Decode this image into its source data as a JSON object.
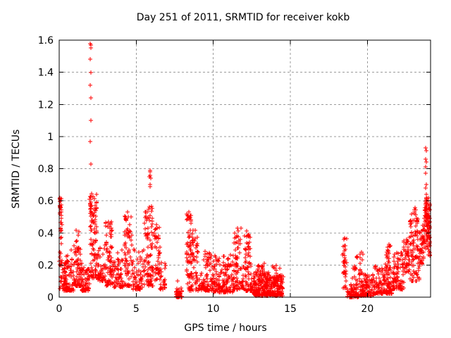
{
  "window": {
    "title": "Day 251 of 2011, SRMTID for receiver kokb"
  },
  "colors": {
    "background": "#ffffff",
    "border": "#000000",
    "grid": "#9b9b9b",
    "text": "#000000",
    "marker": "#ff0000"
  },
  "chart_data": {
    "type": "scatter",
    "title": "Day 251 of 2011, SRMTID for receiver kokb",
    "xlabel": "GPS time / hours",
    "ylabel": "SRMTID / TECUs",
    "xlim": [
      0,
      24.1
    ],
    "ylim": [
      0,
      1.6
    ],
    "xticks": [
      0,
      5,
      10,
      15,
      20
    ],
    "xtick_labels": [
      "0",
      "5",
      "10",
      "15",
      "20"
    ],
    "yticks": [
      0,
      0.2,
      0.4,
      0.6,
      0.8,
      1,
      1.2,
      1.4,
      1.6
    ],
    "ytick_labels": [
      "0",
      "0.2",
      "0.4",
      "0.6",
      "0.8",
      "1",
      "1.2",
      "1.4",
      "1.6"
    ],
    "grid": true,
    "legend": "none",
    "marker": "plus",
    "marker_size": 7,
    "marker_color": "#ff0000",
    "seed": 20110251,
    "spike_points": [
      [
        2.03,
        1.58
      ],
      [
        2.06,
        1.57
      ],
      [
        2.04,
        1.55
      ],
      [
        2.03,
        1.48
      ],
      [
        2.05,
        1.4
      ],
      [
        2.03,
        1.32
      ],
      [
        2.05,
        1.24
      ],
      [
        2.04,
        1.1
      ],
      [
        2.03,
        0.97
      ],
      [
        2.05,
        0.83
      ],
      [
        5.88,
        0.79
      ],
      [
        5.92,
        0.78
      ],
      [
        5.9,
        0.76
      ],
      [
        5.86,
        0.75
      ],
      [
        5.95,
        0.74
      ],
      [
        5.89,
        0.7
      ],
      [
        5.92,
        0.69
      ],
      [
        0.06,
        0.62
      ],
      [
        0.08,
        0.6
      ],
      [
        7.7,
        0.1
      ],
      [
        8.42,
        0.53
      ],
      [
        3.18,
        0.47
      ],
      [
        4.45,
        0.53
      ],
      [
        6.32,
        0.45
      ],
      [
        11.55,
        0.43
      ],
      [
        11.6,
        0.41
      ],
      [
        12.18,
        0.41
      ],
      [
        18.5,
        0.37
      ],
      [
        23.78,
        0.93
      ],
      [
        23.81,
        0.91
      ],
      [
        23.79,
        0.86
      ],
      [
        23.82,
        0.84
      ],
      [
        23.8,
        0.81
      ],
      [
        23.79,
        0.77
      ],
      [
        23.83,
        0.7
      ],
      [
        23.78,
        0.68
      ],
      [
        23.81,
        0.64
      ]
    ],
    "clusters": [
      [
        0.02,
        0.15,
        0.48,
        0.62,
        18,
        "mid"
      ],
      [
        0.02,
        0.18,
        0.18,
        0.48,
        16,
        "mid"
      ],
      [
        0.05,
        0.5,
        0.05,
        0.24,
        48,
        "low"
      ],
      [
        0.3,
        0.95,
        0.04,
        0.3,
        75,
        "low"
      ],
      [
        0.95,
        1.45,
        0.07,
        0.33,
        70,
        "low"
      ],
      [
        1.05,
        1.3,
        0.28,
        0.42,
        10,
        "mid"
      ],
      [
        1.45,
        1.95,
        0.04,
        0.2,
        55,
        "low"
      ],
      [
        1.98,
        2.12,
        0.5,
        0.68,
        12,
        "mid"
      ],
      [
        2.02,
        2.45,
        0.28,
        0.65,
        55,
        "mid"
      ],
      [
        2.05,
        2.55,
        0.12,
        0.3,
        45,
        "low"
      ],
      [
        2.5,
        3.0,
        0.1,
        0.33,
        50,
        "low"
      ],
      [
        3.0,
        3.45,
        0.15,
        0.47,
        42,
        "mid"
      ],
      [
        3.0,
        3.5,
        0.07,
        0.2,
        30,
        "low"
      ],
      [
        3.5,
        4.15,
        0.06,
        0.3,
        60,
        "low"
      ],
      [
        4.2,
        4.7,
        0.2,
        0.53,
        42,
        "mid"
      ],
      [
        4.2,
        4.8,
        0.07,
        0.25,
        38,
        "low"
      ],
      [
        4.8,
        5.45,
        0.05,
        0.3,
        60,
        "low"
      ],
      [
        5.5,
        6.1,
        0.15,
        0.57,
        60,
        "mid"
      ],
      [
        5.55,
        6.15,
        0.07,
        0.2,
        30,
        "low"
      ],
      [
        6.15,
        6.55,
        0.1,
        0.45,
        40,
        "mid"
      ],
      [
        6.5,
        6.95,
        0.05,
        0.22,
        28,
        "low"
      ],
      [
        7.55,
        7.98,
        0.0,
        0.06,
        40,
        "low"
      ],
      [
        8.25,
        8.6,
        0.12,
        0.52,
        48,
        "mid"
      ],
      [
        8.6,
        9.0,
        0.1,
        0.42,
        42,
        "mid"
      ],
      [
        8.3,
        9.35,
        0.04,
        0.15,
        45,
        "low"
      ],
      [
        9.35,
        9.95,
        0.04,
        0.29,
        65,
        "low"
      ],
      [
        9.95,
        11.3,
        0.03,
        0.27,
        160,
        "low"
      ],
      [
        11.35,
        11.85,
        0.18,
        0.43,
        28,
        "mid"
      ],
      [
        11.3,
        12.0,
        0.05,
        0.2,
        50,
        "low"
      ],
      [
        12.0,
        12.45,
        0.18,
        0.41,
        32,
        "mid"
      ],
      [
        12.05,
        12.6,
        0.04,
        0.18,
        40,
        "low"
      ],
      [
        12.6,
        13.6,
        0.01,
        0.16,
        160,
        "low"
      ],
      [
        12.85,
        13.3,
        0.1,
        0.22,
        28,
        "mid"
      ],
      [
        13.6,
        14.55,
        0.01,
        0.14,
        140,
        "low"
      ],
      [
        13.85,
        14.5,
        0.1,
        0.2,
        20,
        "mid"
      ],
      [
        18.4,
        18.65,
        0.05,
        0.37,
        35,
        "mid"
      ],
      [
        18.7,
        19.45,
        0.0,
        0.08,
        65,
        "low"
      ],
      [
        19.0,
        19.35,
        0.08,
        0.26,
        14,
        "mid"
      ],
      [
        19.45,
        20.4,
        0.01,
        0.15,
        115,
        "low"
      ],
      [
        19.5,
        19.7,
        0.14,
        0.28,
        10,
        "mid"
      ],
      [
        20.4,
        21.6,
        0.02,
        0.2,
        140,
        "low"
      ],
      [
        21.15,
        21.5,
        0.16,
        0.33,
        22,
        "mid"
      ],
      [
        21.6,
        22.35,
        0.05,
        0.28,
        85,
        "low"
      ],
      [
        22.35,
        22.75,
        0.15,
        0.4,
        45,
        "mid"
      ],
      [
        22.75,
        23.3,
        0.22,
        0.5,
        50,
        "mid"
      ],
      [
        22.8,
        23.2,
        0.5,
        0.56,
        8,
        "mid"
      ],
      [
        22.75,
        23.4,
        0.1,
        0.25,
        28,
        "low"
      ],
      [
        23.35,
        23.7,
        0.2,
        0.45,
        42,
        "mid"
      ],
      [
        23.7,
        23.95,
        0.3,
        0.62,
        48,
        "mid"
      ],
      [
        23.95,
        24.07,
        0.25,
        0.62,
        38,
        "mid"
      ],
      [
        23.74,
        23.86,
        0.5,
        0.62,
        16,
        "mid"
      ]
    ]
  }
}
